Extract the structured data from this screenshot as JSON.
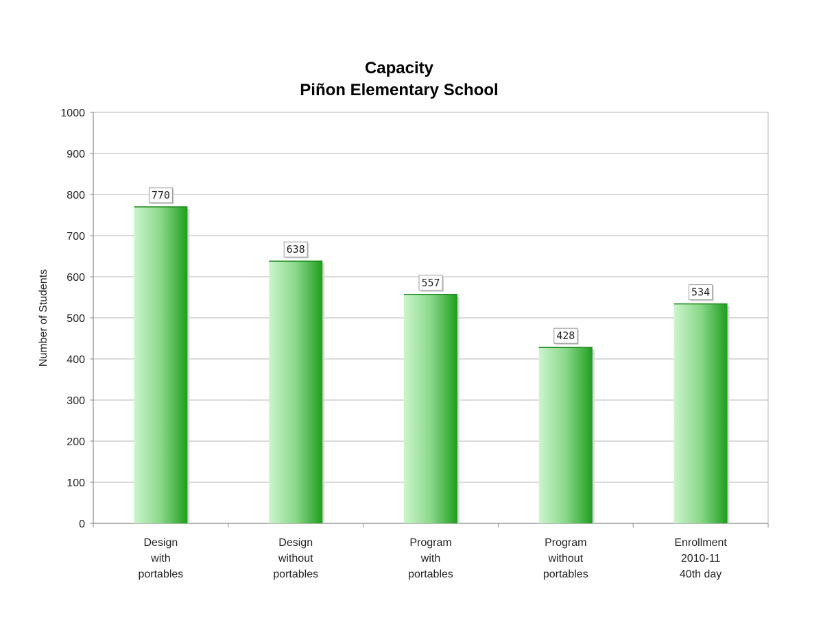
{
  "chart_data": {
    "type": "bar",
    "title": "Capacity",
    "subtitle": "Piñon Elementary School",
    "ylabel": "Number of Students",
    "xlabel": "",
    "ylim": [
      0,
      1000
    ],
    "yticks": [
      0,
      100,
      200,
      300,
      400,
      500,
      600,
      700,
      800,
      900,
      1000
    ],
    "grid": true,
    "legend": "none",
    "categories": [
      [
        "Design",
        "with",
        "portables"
      ],
      [
        "Design",
        "without",
        "portables"
      ],
      [
        "Program",
        "with",
        "portables"
      ],
      [
        "Program",
        "without",
        "portables"
      ],
      [
        "Enrollment",
        "2010-11",
        "40th day"
      ]
    ],
    "values": [
      770,
      638,
      557,
      428,
      534
    ],
    "colors": {
      "bar_light": "#ccf5cc",
      "bar_dark": "#1e9e1e",
      "grid": "#b4b4b4",
      "axis": "#888888",
      "label_border": "#999999"
    }
  }
}
